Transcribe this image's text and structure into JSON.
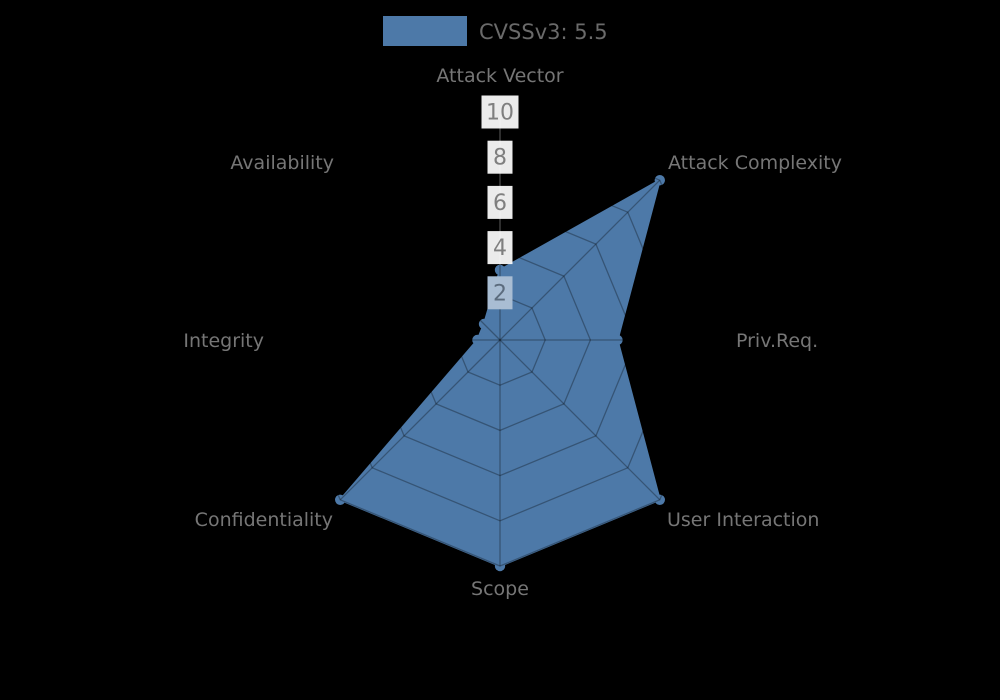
{
  "legend": {
    "label": "CVSSv3: 5.5",
    "swatch_color": "#4d79a8"
  },
  "chart_data": {
    "type": "radar",
    "title": "CVSSv3: 5.5",
    "categories": [
      "Attack Vector",
      "Attack Complexity",
      "Priv.Req.",
      "User Interaction",
      "Scope",
      "Confidentiality",
      "Integrity",
      "Availability"
    ],
    "series": [
      {
        "name": "CVSSv3: 5.5",
        "values": [
          3.1,
          10,
          5.2,
          10,
          10,
          10,
          1,
          1
        ]
      }
    ],
    "radial_ticks": [
      10,
      8,
      6,
      4,
      2
    ],
    "range": [
      0,
      10
    ],
    "grid": true,
    "legend_position": "top-center",
    "colors": {
      "fill": "#4d79a8",
      "marker": "#4d79a8",
      "grid_over_fill": "rgba(0,0,0,0.3)",
      "radial_axis_line": "#9a9a9a",
      "tick_box_bg": "#ffffff",
      "tick_box_bg_covered": "#a9bdd3",
      "tick_text": "#7f7f7f",
      "tick_text_covered": "#5c6c7e",
      "axis_label_color": "#767676",
      "legend_text_color": "#6a6a6a",
      "background": "#000000"
    }
  }
}
